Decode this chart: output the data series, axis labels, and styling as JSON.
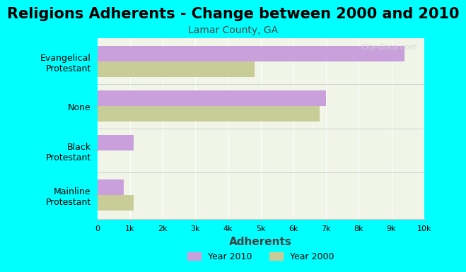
{
  "title": "Religions Adherents - Change between 2000 and 2010",
  "subtitle": "Lamar County, GA",
  "xlabel": "Adherents",
  "categories": [
    "Mainline\nProtestant",
    "Black\nProtestant",
    "None",
    "Evangelical\nProtestant"
  ],
  "values_2010": [
    800,
    1100,
    7000,
    9400
  ],
  "values_2000": [
    1100,
    0,
    6800,
    4800
  ],
  "color_2010": "#c9a0dc",
  "color_2000": "#c8cc96",
  "xlim": [
    0,
    10000
  ],
  "xticks": [
    0,
    1000,
    2000,
    3000,
    4000,
    5000,
    6000,
    7000,
    8000,
    9000,
    10000
  ],
  "xticklabels": [
    "0",
    "1k",
    "2k",
    "3k",
    "4k",
    "5k",
    "6k",
    "7k",
    "8k",
    "9k",
    "10k"
  ],
  "background_color": "#00FFFF",
  "plot_bg_color": "#f0f5e8",
  "title_fontsize": 15,
  "subtitle_fontsize": 10,
  "xlabel_fontsize": 11,
  "watermark": "City-Data.com",
  "legend_label_2010": "Year 2010",
  "legend_label_2000": "Year 2000"
}
